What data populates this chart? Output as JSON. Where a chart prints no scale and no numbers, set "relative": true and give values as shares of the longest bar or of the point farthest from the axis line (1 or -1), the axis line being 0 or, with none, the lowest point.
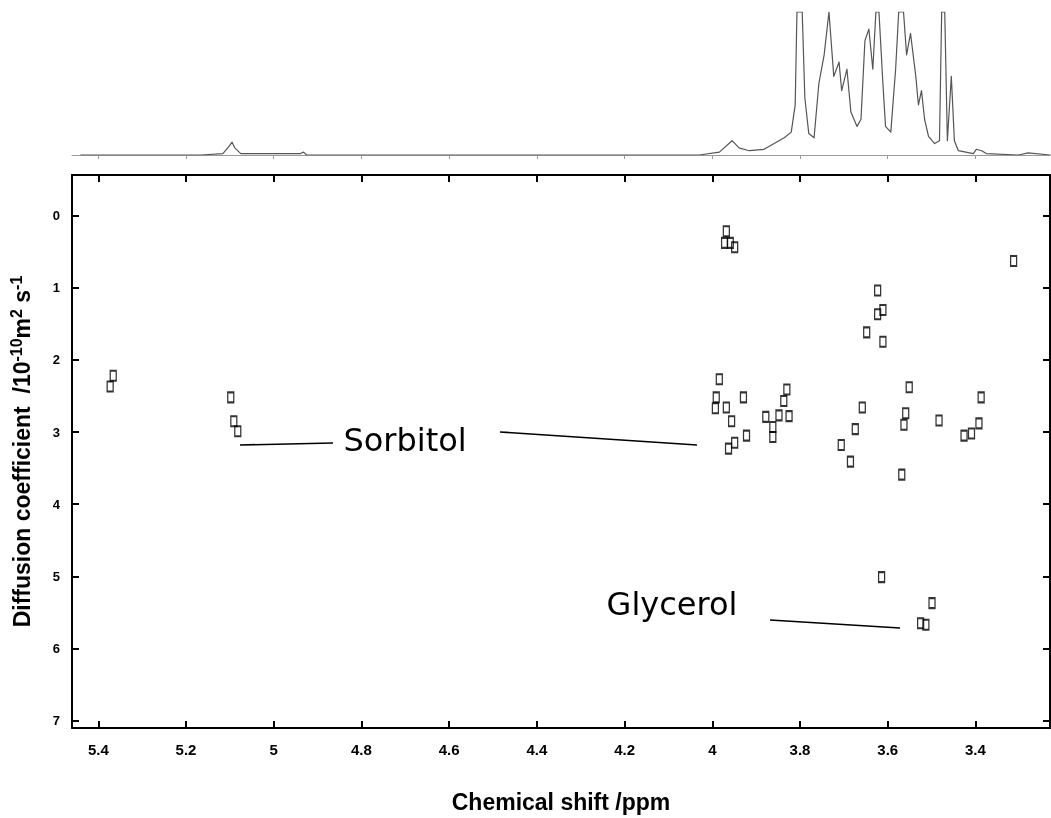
{
  "chart_data": [
    {
      "type": "line",
      "relative": true,
      "tick_labels": false,
      "marker": "none",
      "xlim": [
        5.46,
        3.23
      ],
      "xticks": [
        5.4,
        5.2,
        5,
        4.8,
        4.6,
        4.4,
        4.2,
        4,
        3.8,
        3.6,
        3.4
      ],
      "series": [
        {
          "color": "#555555",
          "x": [
            5.44,
            5.166,
            5.116,
            5.102,
            5.095,
            5.089,
            5.075,
            4.939,
            4.932,
            4.925,
            4.03,
            3.984,
            3.955,
            3.939,
            3.916,
            3.882,
            3.859,
            3.836,
            3.82,
            3.811,
            3.807,
            3.795,
            3.789,
            3.78,
            3.768,
            3.757,
            3.745,
            3.734,
            3.723,
            3.711,
            3.705,
            3.693,
            3.684,
            3.67,
            3.661,
            3.652,
            3.643,
            3.634,
            3.627,
            3.62,
            3.611,
            3.605,
            3.593,
            3.582,
            3.575,
            3.564,
            3.557,
            3.548,
            3.536,
            3.53,
            3.523,
            3.516,
            3.507,
            3.493,
            3.482,
            3.477,
            3.47,
            3.464,
            3.455,
            3.448,
            3.439,
            3.405,
            3.398,
            3.386,
            3.375,
            3.302,
            3.28,
            3.23
          ],
          "values": [
            0,
            0,
            0.01,
            0.06,
            0.09,
            0.05,
            0.01,
            0.01,
            0.02,
            0,
            0,
            0.02,
            0.1,
            0.05,
            0.03,
            0.04,
            0.08,
            0.12,
            0.16,
            0.35,
            1,
            1,
            0.4,
            0.15,
            0.12,
            0.5,
            0.7,
            1,
            0.55,
            0.65,
            0.45,
            0.6,
            0.3,
            0.2,
            0.25,
            0.8,
            0.88,
            0.6,
            1,
            1,
            0.5,
            0.2,
            0.16,
            0.6,
            1,
            1,
            0.7,
            0.85,
            0.55,
            0.35,
            0.45,
            0.25,
            0.13,
            0.08,
            0.1,
            1,
            1,
            0.1,
            0.55,
            0.1,
            0.03,
            0.01,
            0.04,
            0.03,
            0.01,
            0,
            0.015,
            0
          ]
        }
      ]
    },
    {
      "type": "scatter",
      "marker": "square",
      "xlabel": "Chemical shift /ppm",
      "ylabel": "Diffusion coefficient  /10$^{-10}$m$^{2}$ s$^{-1}$",
      "xlim": [
        5.46,
        3.23
      ],
      "ylim": [
        7.1,
        -0.56
      ],
      "xticks": [
        5.4,
        5.2,
        5,
        4.8,
        4.6,
        4.4,
        4.2,
        4,
        3.8,
        3.6,
        3.4
      ],
      "yticks": [
        0,
        1,
        2,
        3,
        4,
        5,
        6,
        7
      ],
      "grid": false,
      "annotations": [
        "Sorbitol",
        "Glycerol"
      ],
      "series": [
        {
          "color": "#000000",
          "x": [
            3.972,
            3.959,
            3.949,
            3.968,
            3.313,
            3.623,
            3.623,
            3.611,
            3.611,
            3.648,
            3.984,
            3.991,
            3.993,
            3.929,
            3.968,
            3.956,
            3.963,
            3.949,
            3.922,
            3.878,
            3.862,
            3.848,
            3.837,
            3.83,
            3.825,
            3.862,
            3.706,
            3.674,
            3.658,
            3.685,
            3.551,
            3.559,
            3.563,
            3.568,
            3.483,
            3.426,
            3.409,
            3.392,
            3.387,
            3.614,
            3.499,
            3.525,
            3.513,
            5.366,
            5.373,
            5.098,
            5.091,
            5.082
          ],
          "values": [
            0.38,
            0.38,
            0.44,
            0.22,
            0.63,
            1.04,
            1.37,
            1.31,
            1.75,
            1.62,
            2.27,
            2.52,
            2.67,
            2.52,
            2.66,
            2.85,
            3.23,
            3.15,
            3.05,
            2.79,
            2.93,
            2.77,
            2.57,
            2.41,
            2.78,
            3.07,
            3.18,
            2.96,
            2.66,
            3.41,
            2.38,
            2.74,
            2.9,
            3.59,
            2.84,
            3.05,
            3.02,
            2.88,
            2.52,
            5.01,
            5.37,
            5.65,
            5.67,
            2.22,
            2.37,
            2.52,
            2.85,
            2.99
          ]
        }
      ]
    }
  ]
}
